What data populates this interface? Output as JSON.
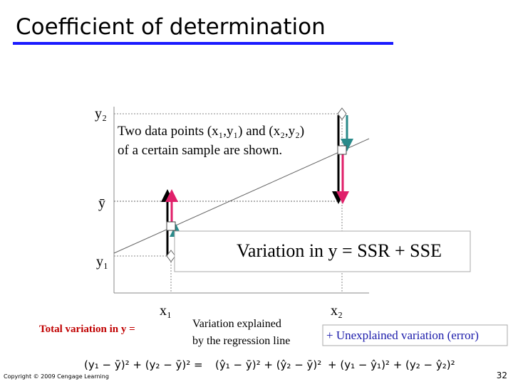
{
  "header": {
    "title": "Coefficient of determination"
  },
  "diagram": {
    "axis_labels": {
      "y2": "y₂",
      "ybar": "ȳ",
      "y1": "y₁",
      "x1": "x₁",
      "x2": "x₂"
    },
    "note": [
      "Two data points (x₁,y₁) and (x₂,y₂)",
      "of a certain sample are shown."
    ],
    "box": "Variation in y = SSR + SSE"
  },
  "equation": {
    "total_label": "Total variation in y =",
    "explained_label": [
      "Variation explained",
      "by the regression line"
    ],
    "unexplained_label": "+ Unexplained variation (error)",
    "total": "(y₁ − ȳ)² + (y₂ − ȳ)² =",
    "explained": "(ŷ₁ − ȳ)² + (ŷ₂ − ȳ)²",
    "unexplained": "+ (y₁ − ŷ₁)² + (y₂ − ŷ₂)²"
  },
  "footer": {
    "copyright": "Copyright © 2009 Cengage Learning",
    "page": "32"
  }
}
